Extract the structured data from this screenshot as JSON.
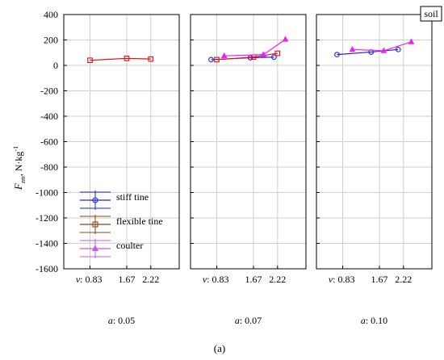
{
  "figure_caption": "(a)",
  "corner_label": "soil",
  "y_axis_label": {
    "main": "F",
    "sub": "zm",
    "unit": ", N·kg",
    "exp": "-1"
  },
  "colors": {
    "stiff": "#2222dd",
    "flexible": "#dd1111",
    "coulter": "#ee22ee",
    "grid": "#cfcfcf",
    "axis": "#000000"
  },
  "legend": [
    {
      "label": "stiff tine",
      "color": "#2222dd",
      "marker": "circle"
    },
    {
      "label": "flexible tine",
      "color": "#8b4513",
      "marker": "square"
    },
    {
      "label": "coulter",
      "color": "#cc55ee",
      "marker": "triangle"
    }
  ],
  "chart_data": {
    "type": "line",
    "ylim": [
      -1600,
      400
    ],
    "yticks": [
      400,
      200,
      0,
      -200,
      -400,
      -600,
      -800,
      -1000,
      -1200,
      -1400,
      -1600
    ],
    "xticks": [
      "v: 0.83",
      "1.67",
      "2.22"
    ],
    "x_tick_values": [
      0.83,
      1.67,
      2.22
    ],
    "xlim": [
      0.23,
      2.87
    ],
    "panels": [
      {
        "label": "a: 0.05",
        "series": [
          {
            "name": "flexible tine",
            "x": [
              0.83,
              1.67,
              2.22
            ],
            "y": [
              40,
              55,
              50
            ]
          }
        ]
      },
      {
        "label": "a: 0.07",
        "series": [
          {
            "name": "stiff tine",
            "x": [
              0.7,
              1.6,
              2.14
            ],
            "y": [
              45,
              60,
              65
            ]
          },
          {
            "name": "flexible tine",
            "x": [
              0.83,
              1.67,
              2.22
            ],
            "y": [
              45,
              65,
              95
            ]
          },
          {
            "name": "coulter",
            "x": [
              1.0,
              1.9,
              2.4
            ],
            "y": [
              75,
              85,
              205
            ]
          }
        ]
      },
      {
        "label": "a: 0.10",
        "series": [
          {
            "name": "stiff tine",
            "x": [
              0.7,
              1.48,
              2.1
            ],
            "y": [
              85,
              105,
              125
            ]
          },
          {
            "name": "coulter",
            "x": [
              1.05,
              1.77,
              2.4
            ],
            "y": [
              125,
              115,
              185
            ]
          }
        ]
      }
    ]
  }
}
